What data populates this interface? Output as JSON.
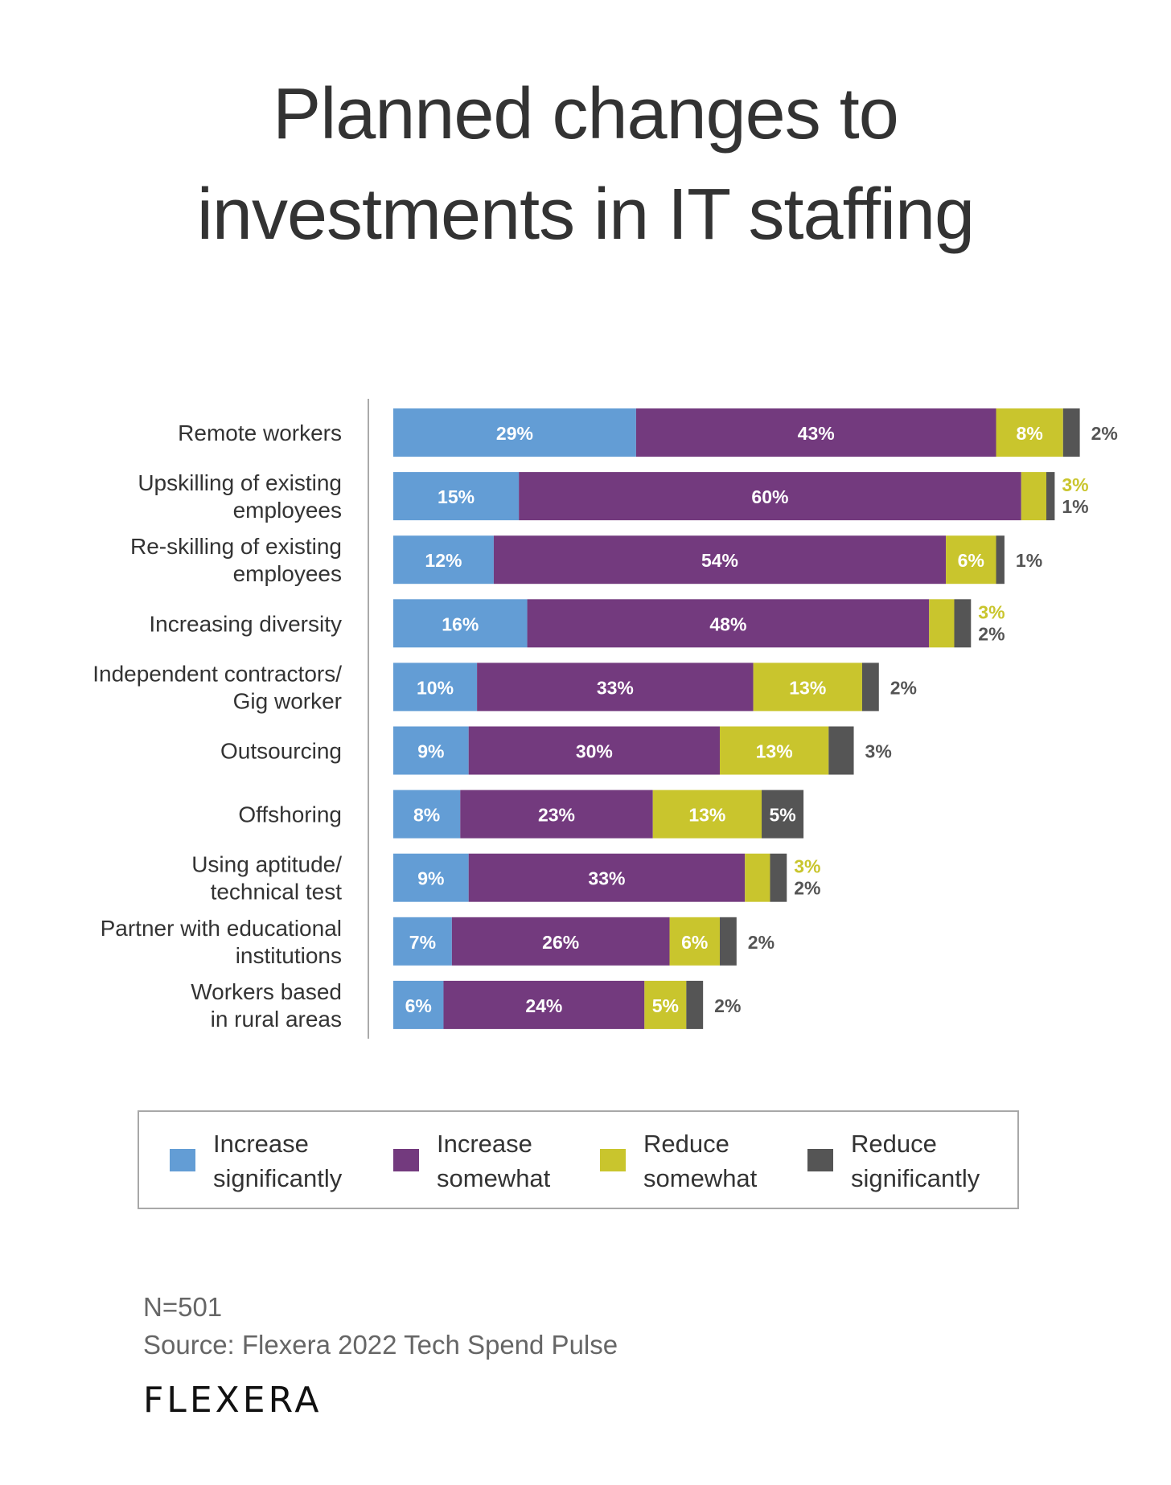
{
  "title": {
    "line1": "Planned changes to",
    "line2": "investments in IT staffing"
  },
  "colors": {
    "increase_significantly": "#639DD5",
    "increase_somewhat": "#733A7E",
    "reduce_somewhat": "#C9C52D",
    "reduce_significantly": "#555555",
    "text": "#333333",
    "value_label_inside": "#FFFFFF",
    "axis": "#AAAAAA"
  },
  "legend": {
    "items": [
      {
        "key": "increase_significantly",
        "line1": "Increase",
        "line2": "significantly"
      },
      {
        "key": "increase_somewhat",
        "line1": "Increase",
        "line2": "somewhat"
      },
      {
        "key": "reduce_somewhat",
        "line1": "Reduce",
        "line2": "somewhat"
      },
      {
        "key": "reduce_significantly",
        "line1": "Reduce",
        "line2": "significantly"
      }
    ]
  },
  "footer": {
    "sample": "N=501",
    "source": "Source: Flexera 2022 Tech Spend Pulse",
    "logo": "FLEXERA"
  },
  "chart_data": {
    "type": "bar",
    "orientation": "horizontal",
    "stacked": true,
    "title": "Planned changes to investments in IT staffing",
    "xlabel": "",
    "ylabel": "",
    "unit": "%",
    "grid": false,
    "legend_position": "bottom",
    "categories": [
      [
        "Remote workers"
      ],
      [
        "Upskilling of existing",
        "employees"
      ],
      [
        "Re-skilling of existing",
        "employees"
      ],
      [
        "Increasing diversity"
      ],
      [
        "Independent contractors/",
        "Gig worker"
      ],
      [
        "Outsourcing"
      ],
      [
        "Offshoring"
      ],
      [
        "Using aptitude/",
        "technical test"
      ],
      [
        "Partner with educational",
        "institutions"
      ],
      [
        "Workers based",
        "in rural areas"
      ]
    ],
    "series": [
      {
        "name": "Increase significantly",
        "key": "increase_significantly",
        "values": [
          29,
          15,
          12,
          16,
          10,
          9,
          8,
          9,
          7,
          6
        ]
      },
      {
        "name": "Increase somewhat",
        "key": "increase_somewhat",
        "values": [
          43,
          60,
          54,
          48,
          33,
          30,
          23,
          33,
          26,
          24
        ]
      },
      {
        "name": "Reduce somewhat",
        "key": "reduce_somewhat",
        "values": [
          8,
          3,
          6,
          3,
          13,
          13,
          13,
          3,
          6,
          5
        ]
      },
      {
        "name": "Reduce significantly",
        "key": "reduce_significantly",
        "values": [
          2,
          1,
          1,
          2,
          2,
          3,
          5,
          2,
          2,
          2
        ]
      }
    ],
    "outside_labels": [
      [
        {
          "text": "2%",
          "series": "reduce_significantly"
        }
      ],
      [
        {
          "text": "3%",
          "series": "reduce_somewhat"
        },
        {
          "text": "1%",
          "series": "reduce_significantly"
        }
      ],
      [
        {
          "text": "1%",
          "series": "reduce_significantly"
        }
      ],
      [
        {
          "text": "3%",
          "series": "reduce_somewhat"
        },
        {
          "text": "2%",
          "series": "reduce_significantly"
        }
      ],
      [
        {
          "text": "2%",
          "series": "reduce_significantly"
        }
      ],
      [
        {
          "text": "3%",
          "series": "reduce_significantly"
        }
      ],
      [],
      [
        {
          "text": "3%",
          "series": "reduce_somewhat"
        },
        {
          "text": "2%",
          "series": "reduce_significantly"
        }
      ],
      [
        {
          "text": "2%",
          "series": "reduce_significantly"
        }
      ],
      [
        {
          "text": "2%",
          "series": "reduce_significantly"
        }
      ]
    ],
    "xlim": [
      0,
      100
    ]
  }
}
